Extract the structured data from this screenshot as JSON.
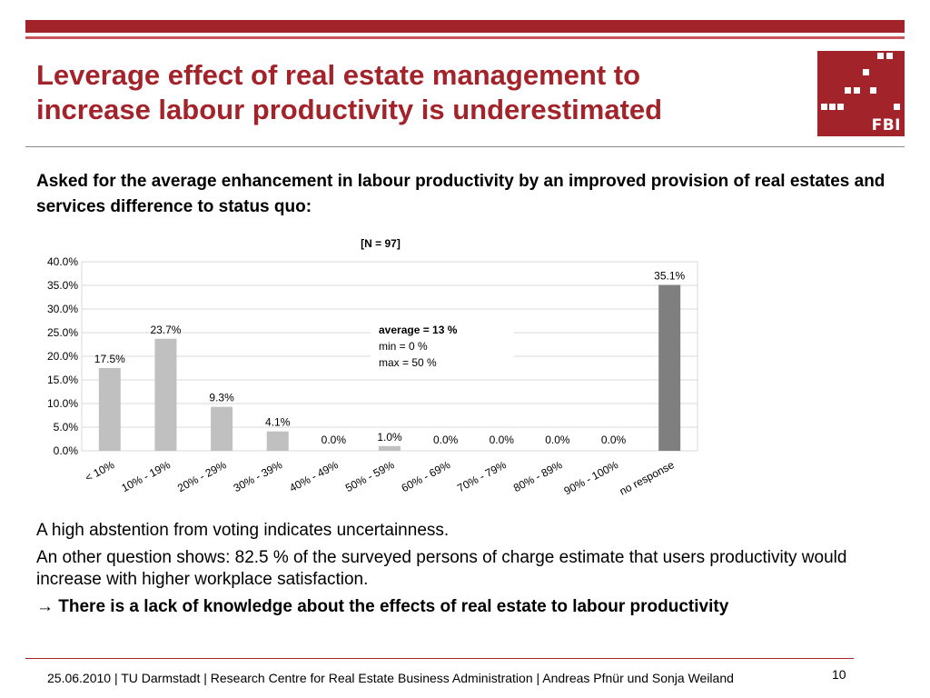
{
  "slide": {
    "title_line1": "Leverage effect of real estate management to",
    "title_line2": "increase labour productivity is underestimated",
    "logo_text": "FBI",
    "subtitle": "Asked for the average enhancement in labour productivity by an improved provision of real estates and services difference to status quo:"
  },
  "chart_data": {
    "type": "bar",
    "title": "[N = 97]",
    "categories": [
      "< 10%",
      "10% - 19%",
      "20% - 29%",
      "30% - 39%",
      "40% - 49%",
      "50% - 59%",
      "60% - 69%",
      "70% - 79%",
      "80% - 89%",
      "90% - 100%",
      "no response"
    ],
    "values": [
      17.5,
      23.7,
      9.3,
      4.1,
      0.0,
      1.0,
      0.0,
      0.0,
      0.0,
      0.0,
      35.1
    ],
    "data_labels": [
      "17.5%",
      "23.7%",
      "9.3%",
      "4.1%",
      "0.0%",
      "1.0%",
      "0.0%",
      "0.0%",
      "0.0%",
      "0.0%",
      "35.1%"
    ],
    "yticks": [
      "0.0%",
      "5.0%",
      "10.0%",
      "15.0%",
      "20.0%",
      "25.0%",
      "30.0%",
      "35.0%",
      "40.0%"
    ],
    "ylim": [
      0,
      40
    ],
    "grid": true,
    "colors": {
      "bar": "#c0c0c0",
      "highlight": "#7f7f7f",
      "grid": "#d9d9d9"
    },
    "annotation": {
      "line1": "average =  13 %",
      "line2": "min =  0 %",
      "line3": "max = 50 %"
    }
  },
  "body": {
    "line1": "A high abstention from voting indicates uncertainness.",
    "line2": "An other question shows: 82.5 % of the surveyed persons of charge estimate that users productivity would increase with higher workplace satisfaction.",
    "arrow": "→",
    "conclusion": " There is a lack of knowledge about the effects of real estate to labour productivity"
  },
  "footer": {
    "text": "25.06.2010  | TU Darmstadt | Research Centre for Real Estate Business Administration |  Andreas Pfnür und Sonja Weiland",
    "page": "10"
  }
}
